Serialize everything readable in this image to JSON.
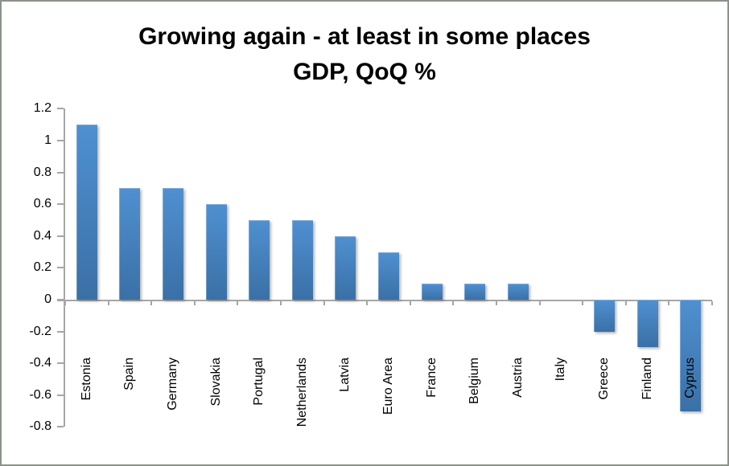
{
  "chart_data": {
    "type": "bar",
    "title": "Growing again - at least in some places",
    "subtitle": "GDP, QoQ %",
    "categories": [
      "Estonia",
      "Spain",
      "Germany",
      "Slovakia",
      "Portugal",
      "Netherlands",
      "Latvia",
      "Euro Area",
      "France",
      "Belgium",
      "Austria",
      "Italy",
      "Greece",
      "Finland",
      "Cyprus"
    ],
    "values": [
      1.1,
      0.7,
      0.7,
      0.6,
      0.5,
      0.5,
      0.4,
      0.3,
      0.1,
      0.1,
      0.1,
      0,
      -0.2,
      -0.3,
      -0.7
    ],
    "xlabel": "",
    "ylabel": "",
    "ylim": [
      -0.8,
      1.2
    ],
    "ytick_step": 0.2,
    "yticks": [
      "1.2",
      "1",
      "0.8",
      "0.6",
      "0.4",
      "0.2",
      "0",
      "-0.2",
      "-0.4",
      "-0.6",
      "-0.8"
    ],
    "grid": false,
    "legend": false,
    "colors": {
      "bar_top": "#4f90d1",
      "bar_bottom": "#3a70a6",
      "axis": "#a6a6a6",
      "text": "#000000",
      "frame_border": "#8b9389",
      "background": "#ffffff"
    }
  }
}
